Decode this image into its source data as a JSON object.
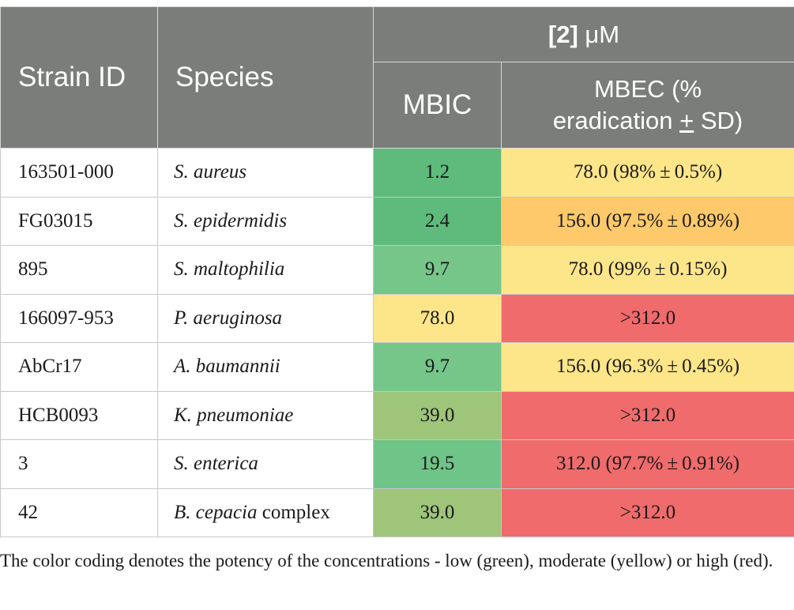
{
  "header": {
    "strain_id": "Strain ID",
    "species": "Species",
    "conc_compound": "[2]",
    "conc_unit": " μM",
    "mbic": "MBIC",
    "mbec_line1": "MBEC (%",
    "mbec_line2_pre": "eradication ",
    "mbec_pm": "+",
    "mbec_line2_post": " SD)"
  },
  "rows": [
    {
      "strain": "163501-000",
      "species_italic": "S. aureus",
      "species_extra": "",
      "mbic": "1.2",
      "mbec": "78.0 (98% ± 0.5%)",
      "mbic_color": "#5ebb7b",
      "mbec_color": "#fde68a"
    },
    {
      "strain": "FG03015",
      "species_italic": "S. epidermidis",
      "species_extra": "",
      "mbic": "2.4",
      "mbec": "156.0 (97.5% ± 0.89%)",
      "mbic_color": "#5ebb7b",
      "mbec_color": "#fdc96a"
    },
    {
      "strain": "895",
      "species_italic": "S. maltophilia",
      "species_extra": "",
      "mbic": "9.7",
      "mbec": "78.0 (99% ± 0.15%)",
      "mbic_color": "#76c68a",
      "mbec_color": "#fde68a"
    },
    {
      "strain": "166097-953",
      "species_italic": "P. aeruginosa",
      "species_extra": "",
      "mbic": "78.0",
      "mbec": ">312.0",
      "mbic_color": "#fde68a",
      "mbec_color": "#f06b6c"
    },
    {
      "strain": "AbCr17",
      "species_italic": "A. baumannii",
      "species_extra": "",
      "mbic": "9.7",
      "mbec": "156.0 (96.3% ± 0.45%)",
      "mbic_color": "#76c68a",
      "mbec_color": "#fde68a"
    },
    {
      "strain": "HCB0093",
      "species_italic": "K. pneumoniae",
      "species_extra": "",
      "mbic": "39.0",
      "mbec": ">312.0",
      "mbic_color": "#9ec57a",
      "mbec_color": "#f06b6c"
    },
    {
      "strain": "3",
      "species_italic": "S. enterica",
      "species_extra": "",
      "mbic": "19.5",
      "mbec": "312.0 (97.7% ± 0.91%)",
      "mbic_color": "#6fc488",
      "mbec_color": "#f06b6c"
    },
    {
      "strain": "42",
      "species_italic": "B. cepacia",
      "species_extra": " complex",
      "mbic": "39.0",
      "mbec": ">312.0",
      "mbic_color": "#9ec57a",
      "mbec_color": "#f06b6c"
    }
  ],
  "footnote": "The color coding denotes the potency of the concentrations - low (green), moderate (yellow) or high (red).",
  "colors": {
    "header_bg": "#7b7d7b",
    "header_text": "#ffffff",
    "border": "#c8c8c8"
  }
}
